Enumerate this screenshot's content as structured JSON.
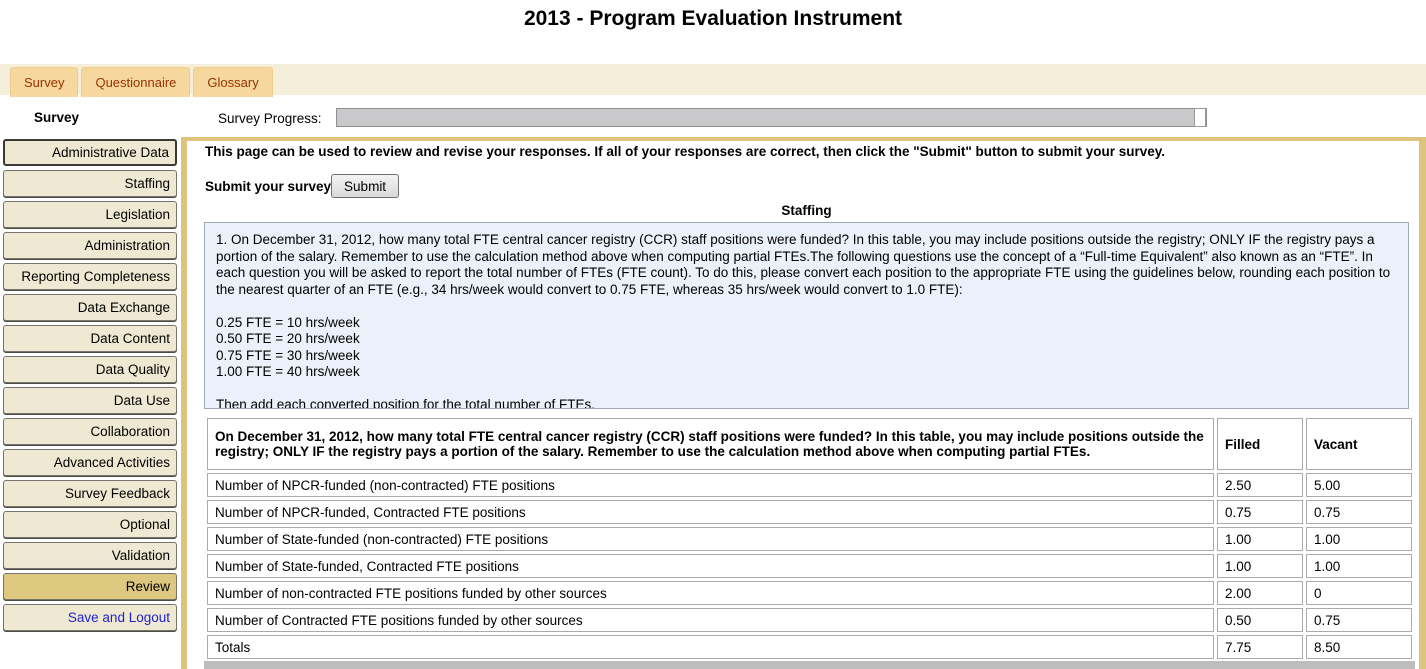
{
  "page": {
    "title": "2013 - Program Evaluation Instrument"
  },
  "tabs": [
    {
      "label": "Survey"
    },
    {
      "label": "Questionnaire"
    },
    {
      "label": "Glossary"
    }
  ],
  "header": {
    "section_label": "Survey",
    "progress_label": "Survey Progress:"
  },
  "sidebar": {
    "items": [
      {
        "label": "Administrative Data",
        "state": ""
      },
      {
        "label": "Staffing",
        "state": ""
      },
      {
        "label": "Legislation",
        "state": ""
      },
      {
        "label": "Administration",
        "state": ""
      },
      {
        "label": "Reporting Completeness",
        "state": ""
      },
      {
        "label": "Data Exchange",
        "state": ""
      },
      {
        "label": "Data Content",
        "state": ""
      },
      {
        "label": "Data Quality",
        "state": ""
      },
      {
        "label": "Data Use",
        "state": ""
      },
      {
        "label": "Collaboration",
        "state": ""
      },
      {
        "label": "Advanced Activities",
        "state": ""
      },
      {
        "label": "Survey Feedback",
        "state": ""
      },
      {
        "label": "Optional",
        "state": ""
      },
      {
        "label": "Validation",
        "state": ""
      },
      {
        "label": "Review",
        "state": "active"
      },
      {
        "label": "Save and Logout",
        "state": "link"
      }
    ]
  },
  "main": {
    "instructions": "This page can be used to review and revise your responses. If all of your responses are correct, then click the \"Submit\" button to submit your survey.",
    "submit_prompt": "Submit your survey",
    "submit_button_label": "Submit",
    "section_title": "Staffing",
    "question_box": {
      "paragraph": "1. On December 31, 2012, how many total FTE central cancer registry (CCR) staff positions were funded? In this table, you may include positions outside the registry; ONLY IF the registry pays a portion of the salary. Remember to use the calculation method above when computing partial FTEs.The following questions use the concept of a “Full-time Equivalent” also known as an “FTE”. In each question you will be asked to report the total number of FTEs (FTE count). To do this, please convert each position to the appropriate FTE using the guidelines below, rounding each position to the nearest quarter of an FTE (e.g., 34 hrs/week would convert to 0.75 FTE, whereas 35 hrs/week would convert to 1.0 FTE):",
      "conversions": [
        "0.25 FTE = 10 hrs/week",
        "0.50 FTE = 20 hrs/week",
        "0.75 FTE = 30 hrs/week",
        "1.00 FTE = 40 hrs/week"
      ],
      "outro": "Then add each converted position for the total number of FTEs."
    },
    "fte_table": {
      "question": "On December 31, 2012, how many total FTE central cancer registry (CCR) staff positions were funded? In this table, you may include positions outside the registry; ONLY IF the registry pays a portion of the salary. Remember to use the calculation method above when computing partial FTEs.",
      "columns": [
        "Filled",
        "Vacant"
      ],
      "rows": [
        {
          "label": "Number of NPCR-funded (non-contracted) FTE positions",
          "filled": "2.50",
          "vacant": "5.00"
        },
        {
          "label": "Number of NPCR-funded, Contracted FTE positions",
          "filled": "0.75",
          "vacant": "0.75"
        },
        {
          "label": "Number of State-funded (non-contracted) FTE positions",
          "filled": "1.00",
          "vacant": "1.00"
        },
        {
          "label": "Number of State-funded, Contracted FTE positions",
          "filled": "1.00",
          "vacant": "1.00"
        },
        {
          "label": "Number of non-contracted FTE positions funded by other sources",
          "filled": "2.00",
          "vacant": "0"
        },
        {
          "label": "Number of Contracted FTE positions funded by other sources",
          "filled": "0.50",
          "vacant": "0.75"
        },
        {
          "label": "Totals",
          "filled": "7.75",
          "vacant": "8.50"
        }
      ]
    }
  },
  "colors": {
    "tab_strip_bg": "#F4EEDA",
    "tab_bg": "#F6D79E",
    "tab_text": "#993300",
    "content_border_gold": "#DCC37E",
    "sidebar_button_bg": "#EFE8D2",
    "sidebar_active_bg": "#DEC77E",
    "sidebar_link_text": "#2222CC",
    "info_box_bg": "#EBF1FA",
    "progress_fill": "#C9C9CC",
    "bottom_bar_gray": "#BDBDBD"
  }
}
